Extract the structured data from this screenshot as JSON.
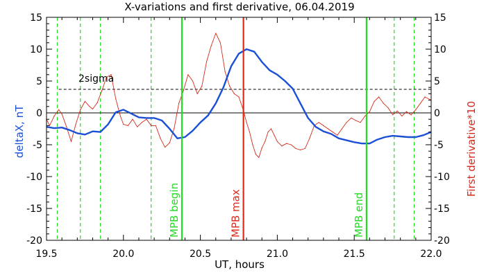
{
  "chart_data": {
    "type": "line",
    "title": "X-variations and first derivative, 06.04.2019",
    "xlabel": "UT, hours",
    "ylabel_left": "deltaX, nT",
    "ylabel_right": "First derivative*10",
    "xlim": [
      19.5,
      22.0
    ],
    "ylim": [
      -20,
      15
    ],
    "x_ticks": [
      "19.5",
      "20.0",
      "20.5",
      "21.0",
      "21.5",
      "22.0"
    ],
    "y_ticks": [
      "-20",
      "-15",
      "-10",
      "-5",
      "0",
      "5",
      "10",
      "15"
    ],
    "colors": {
      "deltaX": "#1a4fd6",
      "derivative": "#d42a1a",
      "mpb_edges": "#22dd22",
      "mpb_max": "#dd2a1a",
      "reference": "#000000"
    },
    "threshold": {
      "label": "2sigma",
      "value": 3.7
    },
    "series": [
      {
        "key": "deltaX",
        "x": [
          19.5,
          19.55,
          19.6,
          19.65,
          19.7,
          19.75,
          19.8,
          19.85,
          19.9,
          19.95,
          20.0,
          20.05,
          20.1,
          20.15,
          20.2,
          20.25,
          20.3,
          20.35,
          20.4,
          20.45,
          20.5,
          20.55,
          20.6,
          20.65,
          20.7,
          20.75,
          20.8,
          20.85,
          20.9,
          20.95,
          21.0,
          21.05,
          21.1,
          21.15,
          21.2,
          21.25,
          21.3,
          21.35,
          21.4,
          21.45,
          21.5,
          21.55,
          21.6,
          21.65,
          21.7,
          21.75,
          21.8,
          21.85,
          21.9,
          21.95,
          22.0
        ],
        "values": [
          -2.2,
          -2.4,
          -2.3,
          -2.7,
          -3.2,
          -3.4,
          -2.9,
          -3.0,
          -1.8,
          0.1,
          0.5,
          -0.1,
          -0.7,
          -0.8,
          -0.8,
          -1.2,
          -2.5,
          -4.0,
          -3.8,
          -2.8,
          -1.5,
          -0.4,
          1.5,
          4.0,
          7.3,
          9.3,
          10.0,
          9.6,
          8.0,
          6.7,
          6.0,
          5.0,
          3.8,
          1.5,
          -0.8,
          -2.2,
          -2.9,
          -3.3,
          -4.0,
          -4.3,
          -4.6,
          -4.8,
          -4.8,
          -4.2,
          -3.8,
          -3.6,
          -3.7,
          -3.8,
          -3.8,
          -3.5,
          -3.0
        ]
      },
      {
        "key": "derivative",
        "x": [
          19.5,
          19.52,
          19.55,
          19.58,
          19.6,
          19.63,
          19.66,
          19.69,
          19.72,
          19.75,
          19.78,
          19.8,
          19.83,
          19.86,
          19.89,
          19.92,
          19.95,
          19.98,
          20.0,
          20.03,
          20.06,
          20.09,
          20.12,
          20.15,
          20.18,
          20.21,
          20.24,
          20.27,
          20.3,
          20.33,
          20.36,
          20.39,
          20.42,
          20.45,
          20.48,
          20.51,
          20.54,
          20.57,
          20.6,
          20.63,
          20.66,
          20.69,
          20.72,
          20.75,
          20.78,
          20.8,
          20.82,
          20.84,
          20.86,
          20.88,
          20.9,
          20.92,
          20.94,
          20.96,
          20.98,
          21.0,
          21.03,
          21.06,
          21.09,
          21.12,
          21.15,
          21.18,
          21.21,
          21.24,
          21.27,
          21.3,
          21.33,
          21.36,
          21.39,
          21.42,
          21.45,
          21.48,
          21.51,
          21.54,
          21.57,
          21.6,
          21.63,
          21.66,
          21.69,
          21.72,
          21.75,
          21.78,
          21.81,
          21.84,
          21.87,
          21.9,
          21.93,
          21.96,
          22.0
        ],
        "values": [
          -1.0,
          -2.0,
          -0.5,
          0.5,
          -0.2,
          -2.2,
          -4.5,
          -1.8,
          0.5,
          1.8,
          1.0,
          0.6,
          1.6,
          3.5,
          5.6,
          6.0,
          2.2,
          -0.5,
          -1.8,
          -2.0,
          -1.0,
          -2.2,
          -1.5,
          -1.0,
          -2.0,
          -2.0,
          -4.0,
          -5.4,
          -4.7,
          -2.4,
          1.5,
          3.5,
          6.0,
          5.0,
          3.0,
          4.2,
          8.0,
          10.5,
          12.5,
          11.0,
          6.5,
          4.2,
          3.0,
          2.5,
          0.4,
          -1.5,
          -3.0,
          -5.0,
          -6.5,
          -7.0,
          -5.5,
          -4.5,
          -3.0,
          -2.5,
          -3.5,
          -4.5,
          -5.2,
          -4.8,
          -5.0,
          -5.6,
          -5.8,
          -5.6,
          -4.0,
          -2.0,
          -1.5,
          -2.0,
          -2.5,
          -3.0,
          -3.5,
          -2.5,
          -1.5,
          -0.8,
          -1.2,
          -1.5,
          -0.5,
          0.2,
          1.8,
          2.5,
          1.5,
          0.8,
          -0.3,
          0.3,
          -0.5,
          0.2,
          -0.3,
          0.5,
          1.5,
          2.5,
          2.0
        ]
      }
    ],
    "vertical_lines": [
      {
        "x": 20.38,
        "label": "MPB begin",
        "color": "#22dd22"
      },
      {
        "x": 20.78,
        "label": "MPB max",
        "color": "#dd2a1a"
      },
      {
        "x": 21.58,
        "label": "MPB end",
        "color": "#22dd22"
      }
    ],
    "dashed_lines_x": [
      19.57,
      19.72,
      19.85,
      20.18,
      21.76,
      21.89
    ]
  }
}
